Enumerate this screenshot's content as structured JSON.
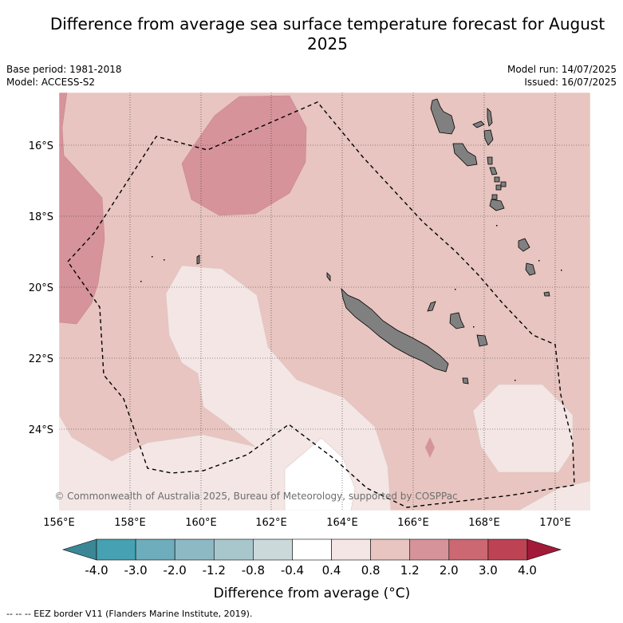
{
  "title": "Difference from average sea surface temperature forecast for August 2025",
  "meta": {
    "base_period": "Base period: 1981-2018",
    "model": "Model: ACCESS-S2",
    "model_run": "Model run: 14/07/2025",
    "issued": "Issued: 16/07/2025"
  },
  "map": {
    "lon_range": [
      156,
      171
    ],
    "lat_range": [
      -26.3,
      -14.5
    ],
    "lon_ticks": [
      "156°E",
      "158°E",
      "160°E",
      "162°E",
      "164°E",
      "166°E",
      "168°E",
      "170°E"
    ],
    "lat_ticks": [
      "16°S",
      "18°S",
      "20°S",
      "22°S",
      "24°S"
    ],
    "copyright": "© Commonwealth of Australia 2025, Bureau of Meteorology, supported by COSPPac",
    "land_color": "#808080",
    "eez_line_style": "dashed black"
  },
  "colorbar": {
    "title": "Difference from average (°C)",
    "labels": [
      "-4.0",
      "-3.0",
      "-2.0",
      "-1.2",
      "-0.8",
      "-0.4",
      "0.4",
      "0.8",
      "1.2",
      "2.0",
      "3.0",
      "4.0"
    ],
    "colors": [
      "#3b8796",
      "#46a2b2",
      "#6dadbc",
      "#8db9c5",
      "#a8c7cc",
      "#ccd9db",
      "#ffffff",
      "#f3e6e5",
      "#e8c5c0",
      "#d6939a",
      "#cb6871",
      "#bd4354",
      "#a3193a"
    ]
  },
  "footer": "--  --  -- EEZ border V11 (Flanders Marine Institute, 2019)."
}
